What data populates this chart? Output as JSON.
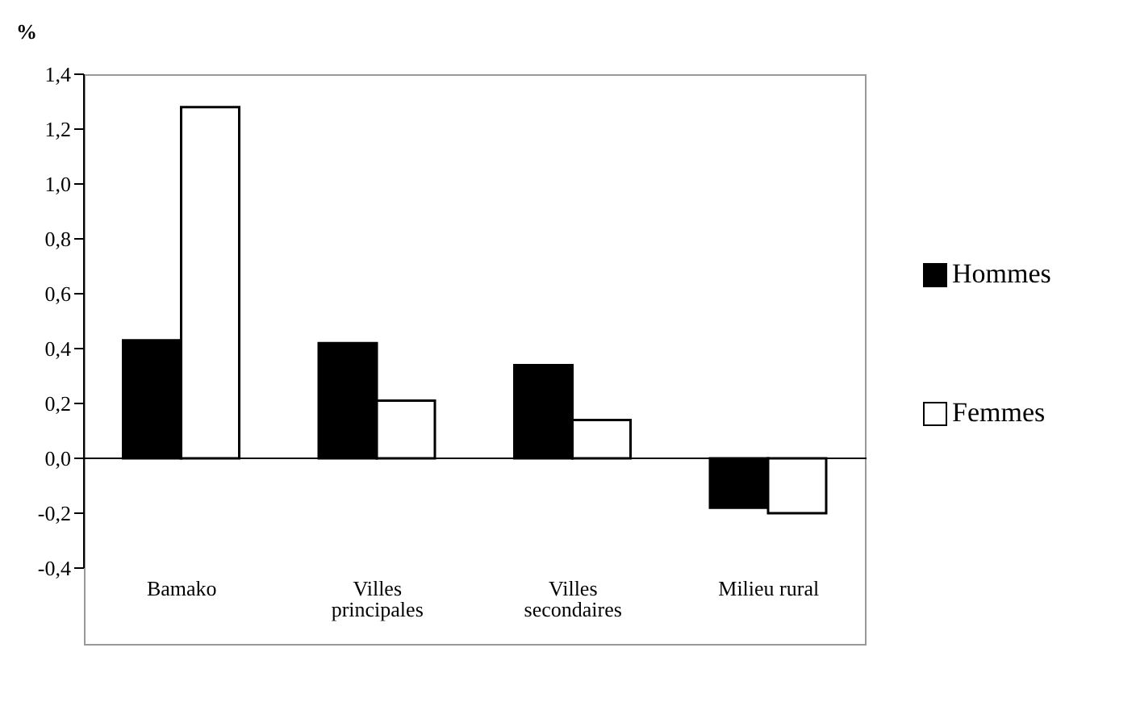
{
  "chart_data": {
    "type": "bar",
    "ylabel": "%",
    "categories": [
      "Bamako",
      "Villes principales",
      "Villes secondaires",
      "Milieu rural"
    ],
    "series": [
      {
        "name": "Hommes",
        "color": "#000000",
        "values": [
          0.43,
          0.42,
          0.34,
          -0.18
        ]
      },
      {
        "name": "Femmes",
        "color": "#ffffff",
        "values": [
          1.28,
          0.21,
          0.14,
          -0.2
        ]
      }
    ],
    "ylim": [
      -0.4,
      1.4
    ],
    "yticks": [
      {
        "value": -0.4,
        "label": "-0,4"
      },
      {
        "value": -0.2,
        "label": "-0,2"
      },
      {
        "value": 0,
        "label": "0,0"
      },
      {
        "value": 0.2,
        "label": "0,2"
      },
      {
        "value": 0.4,
        "label": "0,4"
      },
      {
        "value": 0.6,
        "label": "0,6"
      },
      {
        "value": 0.8,
        "label": "0,8"
      },
      {
        "value": 1.0,
        "label": "1,0"
      },
      {
        "value": 1.2,
        "label": "1,2"
      },
      {
        "value": 1.4,
        "label": "1,4"
      }
    ],
    "legend": "right"
  }
}
